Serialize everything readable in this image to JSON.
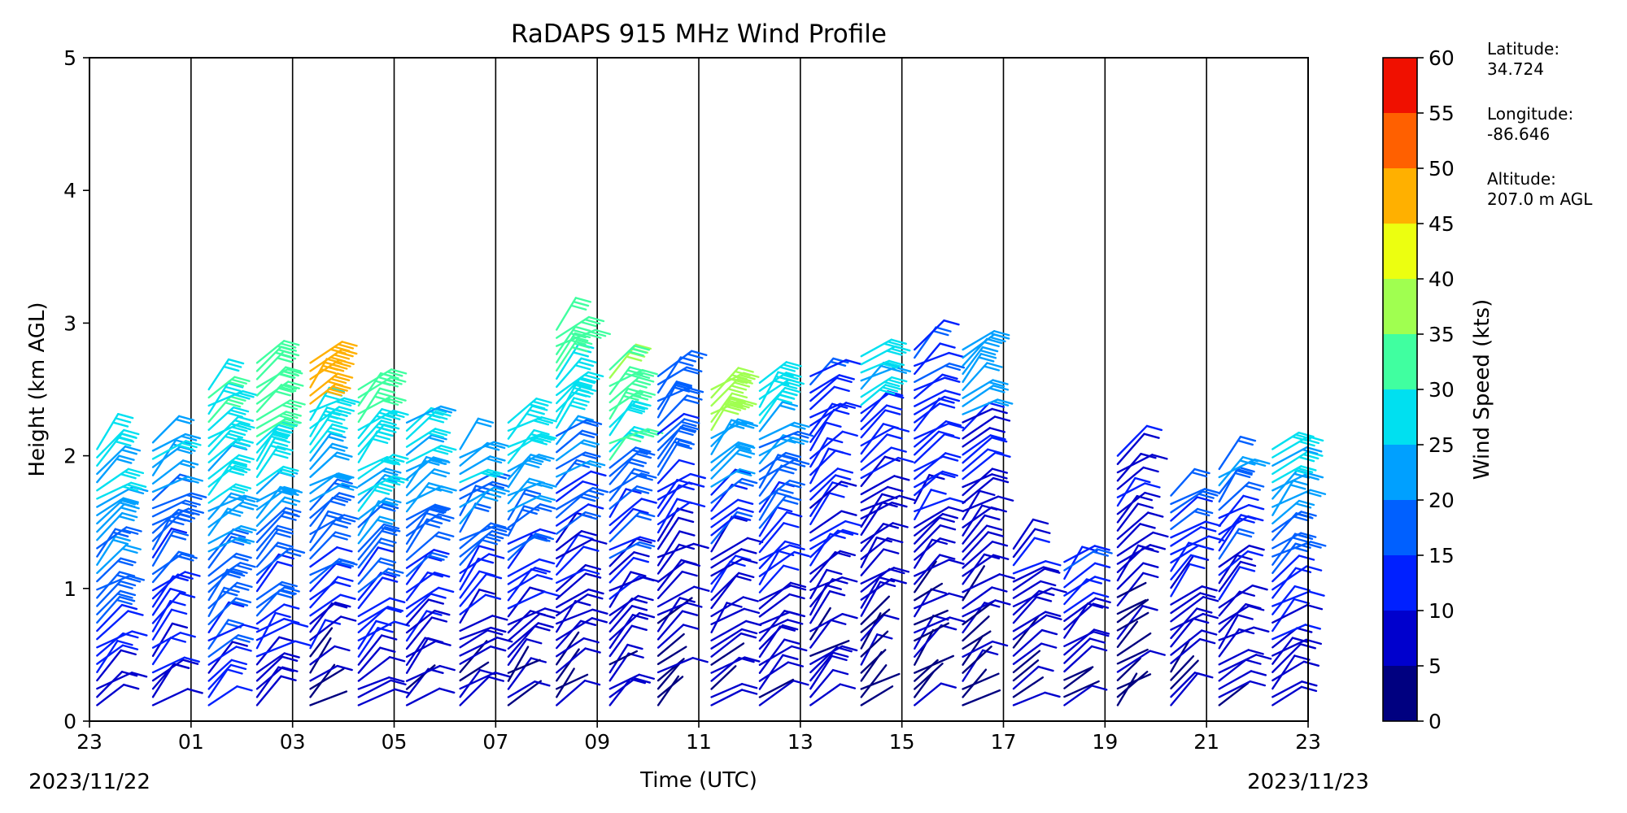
{
  "chart_data": {
    "type": "wind_barb_profile",
    "title": "RaDAPS 915 MHz Wind Profile",
    "xlabel": "Time (UTC)",
    "ylabel": "Height (km AGL)",
    "x_tick_labels": [
      "23",
      "01",
      "03",
      "05",
      "07",
      "09",
      "11",
      "13",
      "15",
      "17",
      "19",
      "21",
      "23"
    ],
    "x_range_hours": [
      0,
      24
    ],
    "start_date_label": "2023/11/22",
    "end_date_label": "2023/11/23",
    "ylim": [
      0,
      5
    ],
    "y_ticks": [
      "0",
      "1",
      "2",
      "3",
      "4",
      "5"
    ],
    "vertical_gridlines": true,
    "colorbar": {
      "label": "Wind Speed (kts)",
      "ticks": [
        "0",
        "5",
        "10",
        "15",
        "20",
        "25",
        "30",
        "35",
        "40",
        "45",
        "50",
        "55",
        "60"
      ],
      "levels": [
        0,
        5,
        10,
        15,
        20,
        25,
        30,
        35,
        40,
        45,
        50,
        55,
        60
      ],
      "colors": [
        "#000080",
        "#0000cd",
        "#0020ff",
        "#0060ff",
        "#00a0ff",
        "#00e0f0",
        "#40ffa0",
        "#a0ff50",
        "#ecff10",
        "#ffb000",
        "#ff6000",
        "#f01000",
        "#800000"
      ]
    },
    "profiles": [
      {
        "t": 0.15,
        "max_km": 2.05,
        "speeds": [
          10,
          12,
          14,
          16,
          18,
          20,
          22,
          24,
          26,
          28
        ]
      },
      {
        "t": 1.25,
        "max_km": 2.1,
        "speeds": [
          8,
          10,
          12,
          14,
          16,
          18,
          20,
          22,
          24
        ]
      },
      {
        "t": 2.35,
        "max_km": 2.5,
        "speeds": [
          10,
          14,
          18,
          20,
          22,
          26,
          28,
          30
        ]
      },
      {
        "t": 3.3,
        "max_km": 2.7,
        "speeds": [
          8,
          12,
          16,
          20,
          24,
          28,
          32,
          34
        ]
      },
      {
        "t": 4.35,
        "max_km": 2.7,
        "speeds": [
          6,
          10,
          14,
          18,
          22,
          28,
          48
        ]
      },
      {
        "t": 5.3,
        "max_km": 2.5,
        "speeds": [
          8,
          12,
          16,
          20,
          24,
          28,
          32
        ]
      },
      {
        "t": 6.25,
        "max_km": 2.25,
        "speeds": [
          6,
          10,
          14,
          18,
          22,
          26
        ]
      },
      {
        "t": 7.3,
        "max_km": 2.05,
        "speeds": [
          6,
          8,
          12,
          16,
          20,
          24
        ]
      },
      {
        "t": 8.25,
        "max_km": 2.25,
        "speeds": [
          6,
          8,
          12,
          16,
          22,
          28
        ]
      },
      {
        "t": 9.2,
        "max_km": 2.95,
        "speeds": [
          6,
          8,
          10,
          14,
          20,
          28,
          32
        ]
      },
      {
        "t": 10.25,
        "max_km": 2.65,
        "speeds": [
          6,
          8,
          10,
          14,
          18,
          30,
          34
        ]
      },
      {
        "t": 11.2,
        "max_km": 2.6,
        "speeds": [
          4,
          6,
          8,
          12,
          16,
          18
        ]
      },
      {
        "t": 12.25,
        "max_km": 2.5,
        "speeds": [
          6,
          8,
          10,
          14,
          22,
          36
        ]
      },
      {
        "t": 13.2,
        "max_km": 2.55,
        "speeds": [
          6,
          8,
          12,
          16,
          20,
          28
        ]
      },
      {
        "t": 14.2,
        "max_km": 2.6,
        "speeds": [
          6,
          8,
          10,
          12,
          14
        ]
      },
      {
        "t": 15.2,
        "max_km": 2.75,
        "speeds": [
          4,
          6,
          8,
          10,
          12,
          26
        ]
      },
      {
        "t": 16.25,
        "max_km": 2.8,
        "speeds": [
          4,
          6,
          8,
          10,
          12,
          14
        ]
      },
      {
        "t": 17.2,
        "max_km": 2.8,
        "speeds": [
          4,
          6,
          8,
          10,
          22
        ]
      },
      {
        "t": 18.2,
        "max_km": 1.3,
        "speeds": [
          4,
          6,
          8,
          10
        ]
      },
      {
        "t": 19.2,
        "max_km": 1.2,
        "speeds": [
          4,
          6,
          8,
          12,
          16
        ]
      },
      {
        "t": 20.25,
        "max_km": 2.0,
        "speeds": [
          4,
          6,
          8,
          10
        ]
      },
      {
        "t": 21.3,
        "max_km": 1.7,
        "speeds": [
          6,
          8,
          10,
          12,
          16
        ]
      },
      {
        "t": 22.25,
        "max_km": 1.9,
        "speeds": [
          6,
          8,
          10,
          14,
          20
        ]
      },
      {
        "t": 23.3,
        "max_km": 2.05,
        "speeds": [
          8,
          10,
          14,
          18,
          22,
          26
        ]
      }
    ]
  },
  "station_info": {
    "latitude_label": "Latitude:",
    "latitude_value": "34.724",
    "longitude_label": "Longitude:",
    "longitude_value": "-86.646",
    "altitude_label": "Altitude:",
    "altitude_value": "207.0 m AGL"
  }
}
